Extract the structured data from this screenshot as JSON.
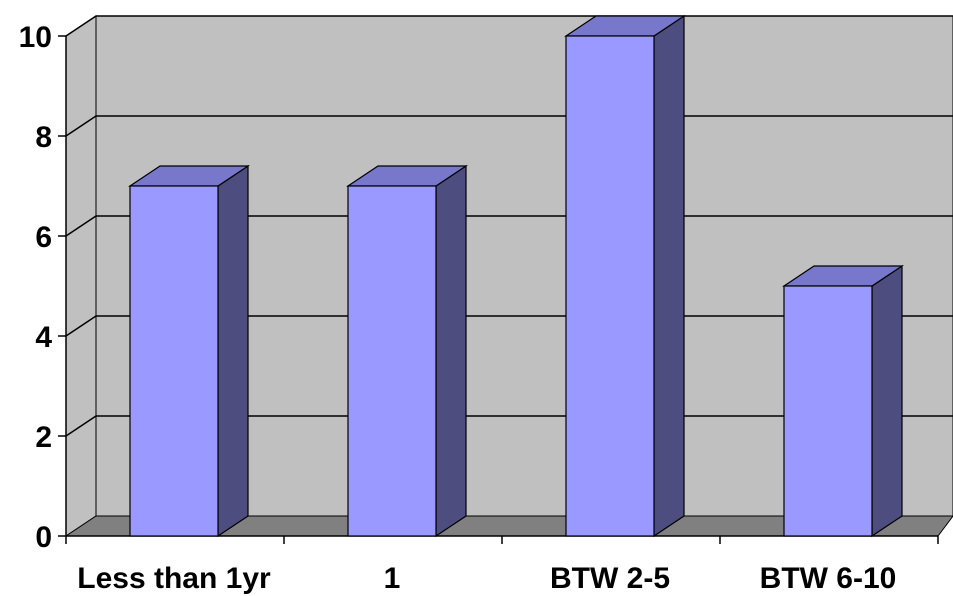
{
  "chart_data": {
    "type": "bar",
    "style": "3d-column",
    "categories": [
      "Less than 1yr",
      "1",
      "BTW 2-5",
      "BTW 6-10"
    ],
    "values": [
      7,
      7,
      10,
      5
    ],
    "ylim": [
      0,
      10
    ],
    "yticks": [
      0,
      2,
      4,
      6,
      8,
      10
    ],
    "grid": true,
    "legend": "none",
    "colors": {
      "bar_front": "#9999ff",
      "bar_side": "#4d4d80",
      "bar_top": "#7777cc",
      "back_wall": "#c0c0c0",
      "floor": "#808080"
    }
  }
}
